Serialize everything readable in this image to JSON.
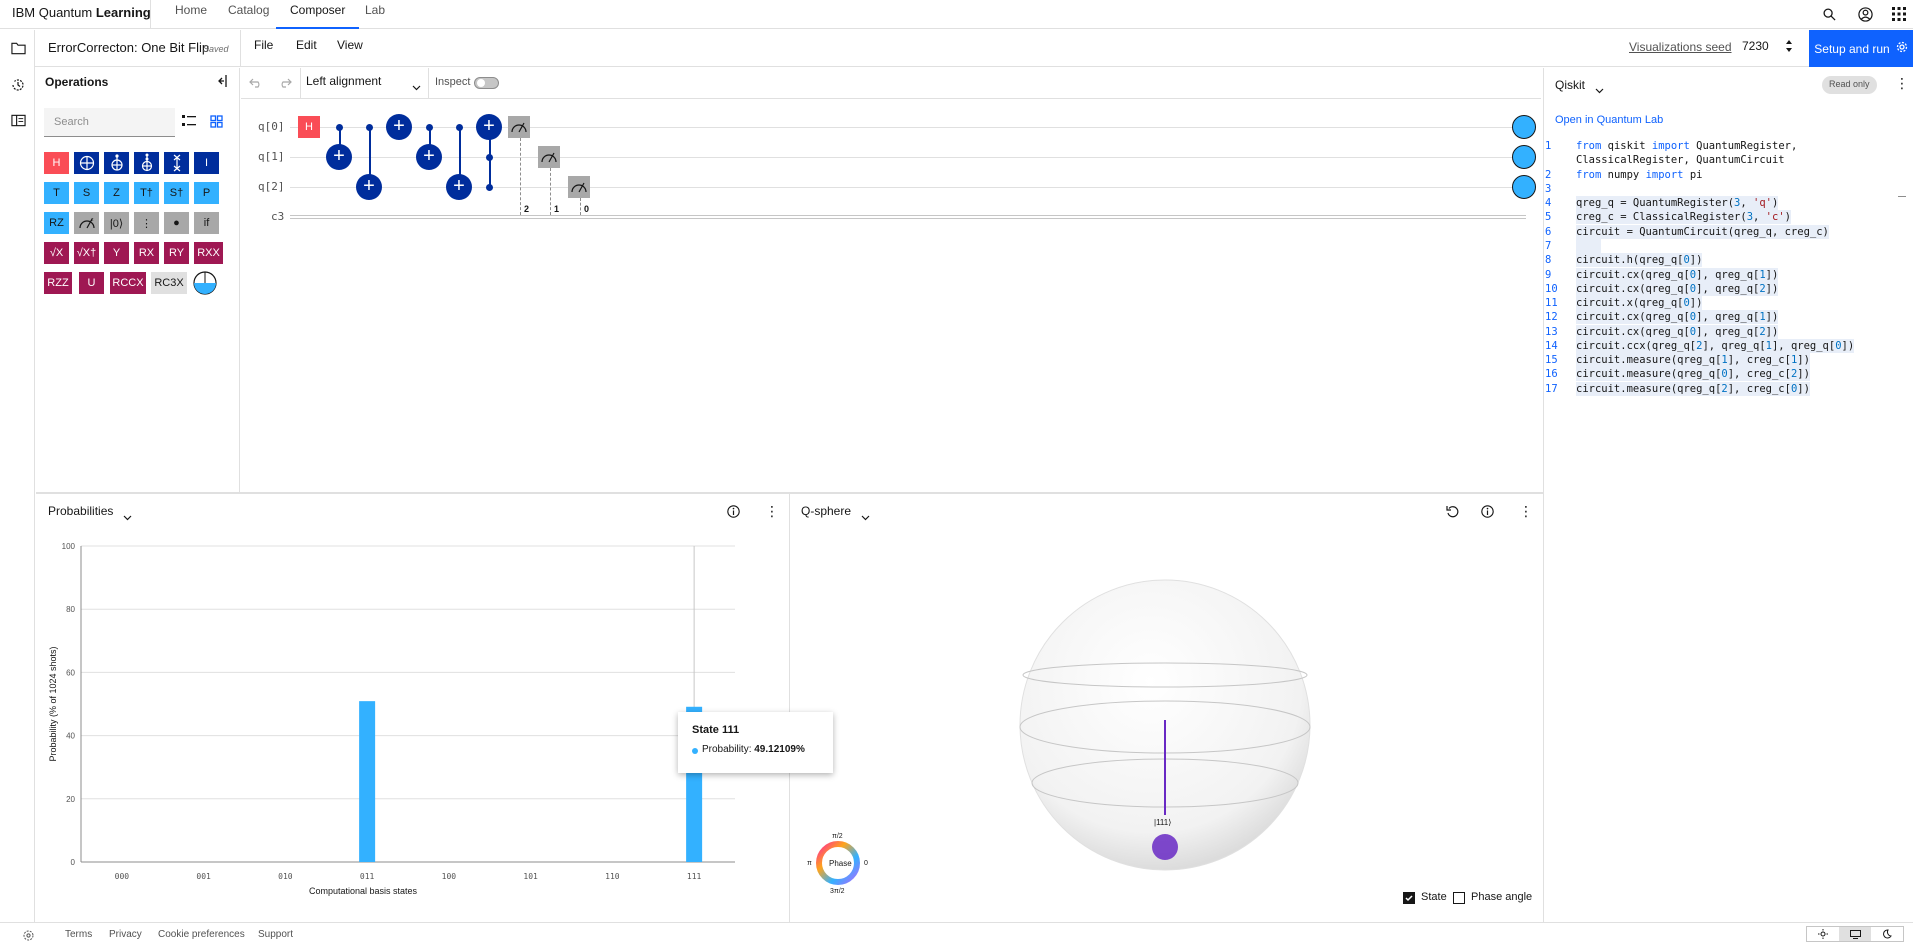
{
  "top": {
    "brand_prefix": "IBM Quantum ",
    "brand_bold": "Learning",
    "nav": [
      "Home",
      "Catalog",
      "Composer",
      "Lab"
    ],
    "active_nav": "Composer"
  },
  "file": {
    "title": "ErrorCorrecton: One Bit Flip",
    "status": "Saved",
    "menus": [
      "File",
      "Edit",
      "View"
    ],
    "seed_label": "Visualizations seed",
    "seed_value": "7230",
    "run_label": "Setup and run"
  },
  "operations": {
    "title": "Operations",
    "search_placeholder": "Search",
    "gates": [
      [
        "H",
        "⊕",
        "⊕",
        "⊕",
        "×",
        "I"
      ],
      [
        "T",
        "S",
        "Z",
        "T†",
        "S†",
        "P"
      ],
      [
        "RZ",
        "meas",
        "|0⟩",
        "⋮",
        "●",
        "if"
      ],
      [
        "√X",
        "√X†",
        "Y",
        "RX",
        "RY",
        "RXX"
      ],
      [
        "RZZ",
        "U",
        "RCCX",
        "RC3X",
        "◔"
      ]
    ]
  },
  "circuit_toolbar": {
    "alignment": "Left alignment",
    "inspect_label": "Inspect"
  },
  "circuit": {
    "qubits": [
      "q[0]",
      "q[1]",
      "q[2]"
    ],
    "creg": "c3",
    "measure_targets": [
      "2",
      "1",
      "0"
    ],
    "gate_H": "H"
  },
  "code": {
    "language": "Qiskit",
    "read_only": "Read only",
    "open_lab": "Open in Quantum Lab",
    "line_numbers": [
      "1",
      "",
      "2",
      "3",
      "4",
      "5",
      "6",
      "7",
      "8",
      "9",
      "10",
      "11",
      "12",
      "13",
      "14",
      "15",
      "16",
      "17"
    ]
  },
  "probabilities": {
    "title": "Probabilities",
    "tooltip_state": "State 111",
    "tooltip_label": "Probability:",
    "tooltip_value": "49.12109%"
  },
  "chart_data": {
    "type": "bar",
    "categories": [
      "000",
      "001",
      "010",
      "011",
      "100",
      "101",
      "110",
      "111"
    ],
    "values": [
      0,
      0,
      0,
      50.9,
      0,
      0,
      0,
      49.12109
    ],
    "xlabel": "Computational basis states",
    "ylabel": "Probability (% of 1024 shots)",
    "ylim": [
      0,
      100
    ],
    "yticks": [
      "0",
      "20",
      "40",
      "60",
      "80",
      "100"
    ],
    "bar_color": "#33b1ff",
    "grid": true
  },
  "qsphere": {
    "title": "Q-sphere",
    "state_label": "|111⟩",
    "phase_label": "Phase",
    "phase_top": "π/2",
    "phase_left": "π",
    "phase_right": "0",
    "phase_bottom": "3π/2",
    "state_checkbox": "State",
    "phase_checkbox": "Phase angle",
    "state_checked": true,
    "phase_checked": false
  },
  "footer": {
    "links": [
      "Terms",
      "Privacy",
      "Cookie preferences",
      "Support"
    ]
  },
  "colors": {
    "primary": "#0f62fe",
    "cnot": "#002d9c",
    "hadamard": "#fa4d56",
    "bar": "#33b1ff",
    "rotation": "#9f1853",
    "state_point": "#6929c4"
  }
}
